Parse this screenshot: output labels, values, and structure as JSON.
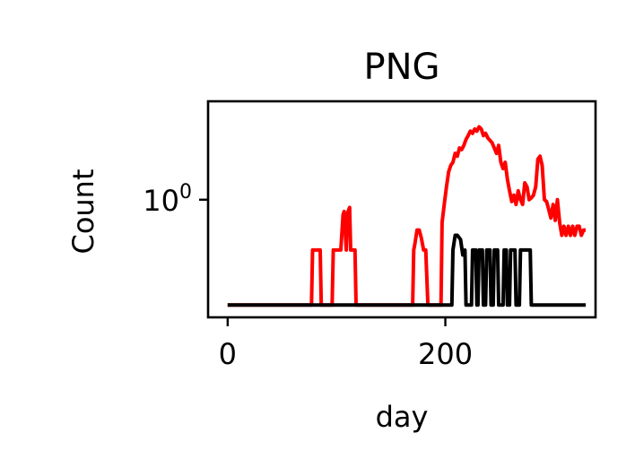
{
  "chart_data": {
    "type": "line",
    "title": "PNG",
    "xlabel": "day",
    "ylabel": "Count",
    "xlim": [
      -18,
      338
    ],
    "ylim": [
      0.28,
      2.9
    ],
    "yscale": "log",
    "grid": false,
    "legend": "none",
    "x_ticks": [
      {
        "value": 0,
        "label": "0"
      },
      {
        "value": 200,
        "label": "200"
      }
    ],
    "y_ticks": [
      {
        "value": 1,
        "base": "10",
        "exp": "0"
      }
    ],
    "series": [
      {
        "color": "#ff0000",
        "x": [
          0,
          77,
          78,
          85,
          86,
          96,
          97,
          103,
          104,
          106,
          107,
          109,
          110,
          112,
          113,
          117,
          118,
          122,
          123,
          170,
          171,
          172,
          174,
          176,
          178,
          180,
          182,
          184,
          185,
          196,
          197,
          199,
          201,
          203,
          205,
          207,
          209,
          211,
          213,
          215,
          217,
          219,
          221,
          223,
          225,
          227,
          229,
          231,
          233,
          235,
          237,
          239,
          241,
          243,
          245,
          247,
          249,
          251,
          253,
          255,
          257,
          259,
          261,
          263,
          265,
          267,
          269,
          271,
          273,
          275,
          277,
          279,
          281,
          283,
          285,
          287,
          289,
          291,
          293,
          295,
          297,
          299,
          301,
          303,
          305,
          307,
          309,
          311,
          313,
          315,
          317,
          319,
          321,
          323,
          325,
          327,
          329
        ],
        "y": [
          0.32,
          0.32,
          0.58,
          0.58,
          0.32,
          0.32,
          0.58,
          0.58,
          0.58,
          0.85,
          0.88,
          0.58,
          0.86,
          0.92,
          0.58,
          0.58,
          0.32,
          0.32,
          0.32,
          0.32,
          0.58,
          0.62,
          0.72,
          0.72,
          0.66,
          0.58,
          0.58,
          0.32,
          0.32,
          0.32,
          0.78,
          0.95,
          1.15,
          1.35,
          1.45,
          1.5,
          1.65,
          1.6,
          1.75,
          1.72,
          1.8,
          1.92,
          2.0,
          2.1,
          2.05,
          2.15,
          2.1,
          2.2,
          2.15,
          2.0,
          2.05,
          1.95,
          1.9,
          1.85,
          1.75,
          1.65,
          1.8,
          1.5,
          1.4,
          1.5,
          1.25,
          1.1,
          0.98,
          1.05,
          0.95,
          1.1,
          1.0,
          0.95,
          1.2,
          1.15,
          1.0,
          1.02,
          1.05,
          1.15,
          1.55,
          1.6,
          1.45,
          1.0,
          0.98,
          0.9,
          0.82,
          0.95,
          0.8,
          1.0,
          0.78,
          0.68,
          0.75,
          0.68,
          0.75,
          0.68,
          0.75,
          0.68,
          0.75,
          0.75,
          0.68,
          0.72,
          0.72
        ]
      },
      {
        "color": "#000000",
        "x": [
          0,
          206,
          207,
          209,
          211,
          214,
          216,
          218,
          219,
          224,
          225,
          228,
          229,
          230,
          231,
          234,
          235,
          237,
          238,
          241,
          242,
          244,
          245,
          248,
          249,
          253,
          254,
          256,
          257,
          259,
          260,
          264,
          265,
          268,
          269,
          271,
          272,
          278,
          279,
          329
        ],
        "y": [
          0.32,
          0.32,
          0.58,
          0.68,
          0.68,
          0.65,
          0.55,
          0.58,
          0.32,
          0.32,
          0.58,
          0.58,
          0.32,
          0.32,
          0.58,
          0.58,
          0.32,
          0.32,
          0.58,
          0.58,
          0.32,
          0.32,
          0.58,
          0.58,
          0.32,
          0.32,
          0.58,
          0.58,
          0.32,
          0.32,
          0.58,
          0.58,
          0.32,
          0.32,
          0.58,
          0.58,
          0.58,
          0.58,
          0.32,
          0.32
        ]
      }
    ]
  }
}
